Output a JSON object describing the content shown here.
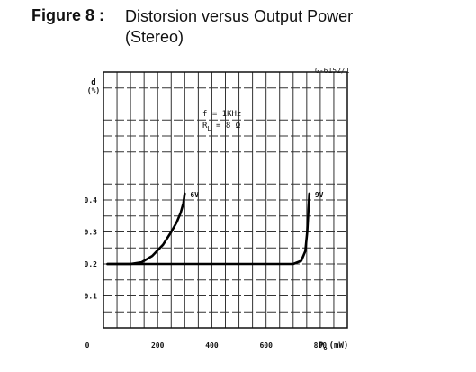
{
  "header": {
    "figure_label": "Figure 8 :",
    "title": "Distorsion versus Output Power (Stereo)"
  },
  "chart_data": {
    "type": "line",
    "code": "G-6152/1",
    "ylabel": "d\n(%)",
    "xlabel": "Po (mW)",
    "xlabel_main": "P",
    "xlabel_sub": "o",
    "xlabel_unit": "(mW)",
    "xlim": [
      0,
      900
    ],
    "ylim": [
      0,
      0.8
    ],
    "x_ticks": [
      0,
      200,
      400,
      600,
      800
    ],
    "x_tick_labels": [
      "0",
      "200",
      "400",
      "600",
      "800"
    ],
    "y_ticks": [
      0.1,
      0.2,
      0.3,
      0.4
    ],
    "y_tick_labels": [
      "0.1",
      "0.2",
      "0.3",
      "0.4"
    ],
    "conditions": [
      "f = 1KHz",
      "RL = 8 Ω"
    ],
    "cond_f": "f = 1KHz",
    "cond_r_main": "R",
    "cond_r_sub": "L",
    "cond_r_rest": " = 8 Ω",
    "grid": true,
    "series": [
      {
        "name": "6V",
        "x": [
          15,
          100,
          140,
          180,
          220,
          250,
          270,
          285,
          295,
          300
        ],
        "y": [
          0.2,
          0.2,
          0.205,
          0.225,
          0.26,
          0.3,
          0.33,
          0.36,
          0.39,
          0.42
        ]
      },
      {
        "name": "9V",
        "x": [
          15,
          200,
          400,
          600,
          700,
          730,
          745,
          752,
          756,
          760
        ],
        "y": [
          0.2,
          0.2,
          0.2,
          0.2,
          0.2,
          0.21,
          0.24,
          0.3,
          0.36,
          0.42
        ]
      }
    ]
  }
}
